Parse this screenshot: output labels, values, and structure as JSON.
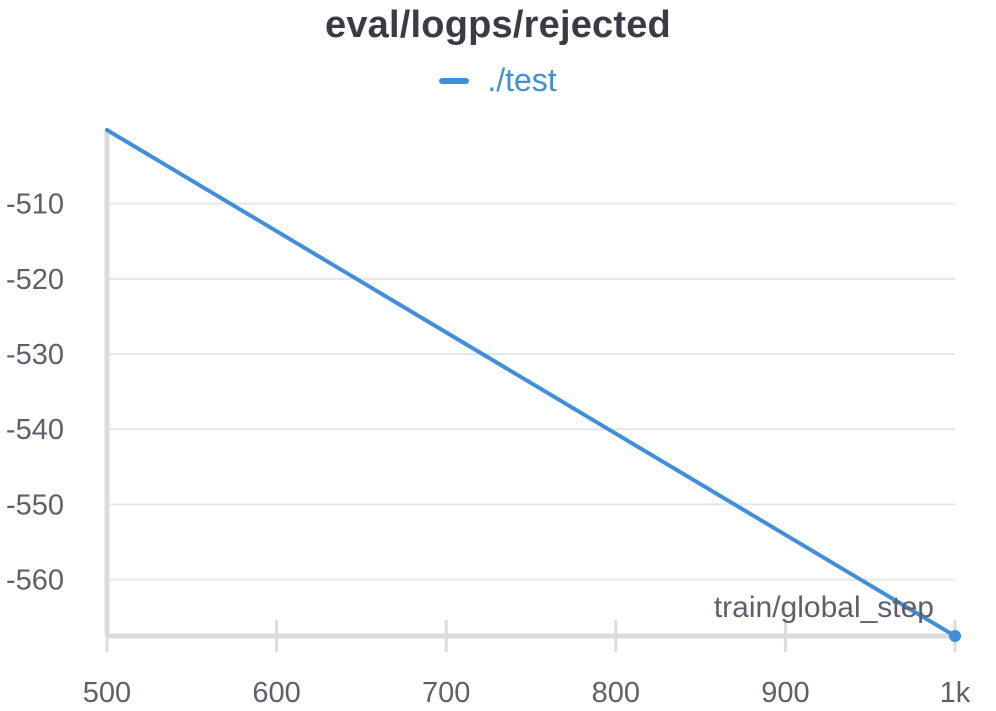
{
  "chart_data": {
    "type": "line",
    "title": "eval/logps/rejected",
    "xlabel": "train/global_step",
    "ylabel": "",
    "xlim": [
      500,
      1000
    ],
    "ylim": [
      -567.5,
      -500.2
    ],
    "x_ticks": [
      500,
      600,
      700,
      800,
      900,
      1000
    ],
    "x_tick_labels": [
      "500",
      "600",
      "700",
      "800",
      "900",
      "1k"
    ],
    "y_ticks": [
      -510,
      -520,
      -530,
      -540,
      -550,
      -560
    ],
    "y_tick_labels": [
      "-510",
      "-520",
      "-530",
      "-540",
      "-550",
      "-560"
    ],
    "grid": true,
    "legend_position": "top-center",
    "series": [
      {
        "name": "./test",
        "color": "#3f8fdb",
        "x": [
          500,
          1000
        ],
        "y": [
          -500.2,
          -567.5
        ]
      }
    ]
  }
}
